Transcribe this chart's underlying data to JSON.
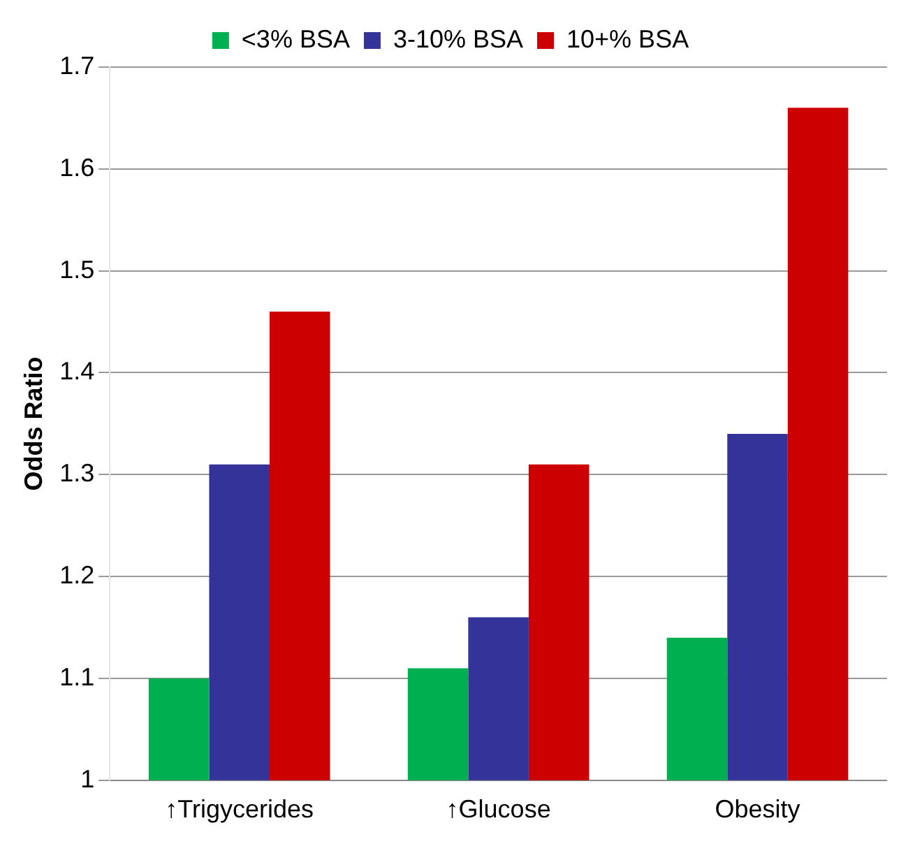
{
  "chart_data": {
    "type": "bar",
    "ylabel": "Odds Ratio",
    "categories": [
      "↑Trigycerides",
      "↑Glucose",
      "Obesity"
    ],
    "series": [
      {
        "name": "<3% BSA",
        "color": "#00b050",
        "values": [
          1.1,
          1.11,
          1.14
        ]
      },
      {
        "name": "3-10% BSA",
        "color": "#333399",
        "values": [
          1.31,
          1.16,
          1.34
        ]
      },
      {
        "name": "10+% BSA",
        "color": "#cc0000",
        "values": [
          1.46,
          1.31,
          1.66
        ]
      }
    ],
    "ylim": [
      1,
      1.7
    ],
    "yticks": [
      1,
      1.1,
      1.2,
      1.3,
      1.4,
      1.5,
      1.6,
      1.7
    ],
    "grid": "y",
    "legend": "top"
  }
}
